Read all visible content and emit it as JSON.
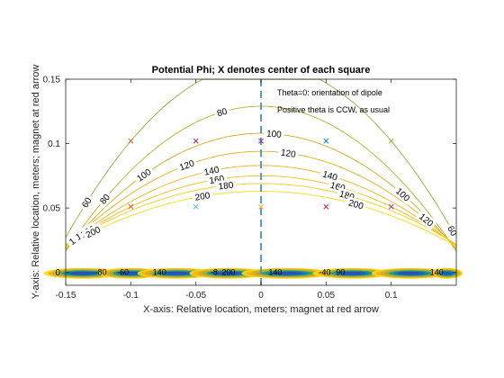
{
  "chart_data": {
    "type": "contour",
    "title": "Potential Phi;  X denotes center of each square",
    "xlabel": "X-axis: Relative location, meters;  magnet at red arrow",
    "ylabel": "Y-axis: Relative location, meters;  magnet at red arrow",
    "xlim": [
      -0.15,
      0.15
    ],
    "ylim": [
      -0.01,
      0.15
    ],
    "xticks": [
      -0.15,
      -0.1,
      -0.05,
      0,
      0.05,
      0.1
    ],
    "xtick_labels": [
      "-0.15",
      "-0.1",
      "-0.05",
      "0",
      "0.05",
      "0.1"
    ],
    "yticks": [
      0,
      0.05,
      0.1,
      0.15
    ],
    "ytick_labels": [
      "0",
      "0.05",
      "0.1",
      "0.15"
    ],
    "grid": false,
    "annotations": [
      "Theta=0: orientation of dipole",
      "Positive theta is CCW, as usual"
    ],
    "contour_levels": [
      {
        "level": 60,
        "color": "#8fb041",
        "y0": 0.162,
        "k": 6.0,
        "labels": [
          {
            "text": "60",
            "x": -0.134
          },
          {
            "text": "60",
            "x": 0.147
          }
        ]
      },
      {
        "level": 80,
        "color": "#b9b12a",
        "y0": 0.129,
        "k": 5.0,
        "labels": [
          {
            "text": "80",
            "x": -0.12
          },
          {
            "text": "80",
            "x": -0.03
          }
        ]
      },
      {
        "level": 100,
        "color": "#d4a922",
        "y0": 0.108,
        "k": 4.0,
        "labels": [
          {
            "text": "100",
            "x": -0.09
          },
          {
            "text": "100",
            "x": 0.01
          },
          {
            "text": "100",
            "x": 0.109
          }
        ]
      },
      {
        "level": 120,
        "color": "#e6ae1f",
        "y0": 0.094,
        "k": 3.3,
        "labels": [
          {
            "text": "120",
            "x": -0.057
          },
          {
            "text": "120",
            "x": 0.021
          },
          {
            "text": "120",
            "x": 0.127
          }
        ]
      },
      {
        "level": 140,
        "color": "#f0b41c",
        "y0": 0.083,
        "k": 2.8,
        "labels": [
          {
            "text": "140",
            "x": -0.142
          },
          {
            "text": "140",
            "x": -0.038
          },
          {
            "text": "140",
            "x": 0.053
          }
        ]
      },
      {
        "level": 160,
        "color": "#f6be1a",
        "y0": 0.075,
        "k": 2.4,
        "labels": [
          {
            "text": "160",
            "x": -0.137
          },
          {
            "text": "160",
            "x": -0.034
          },
          {
            "text": "160",
            "x": 0.059
          }
        ]
      },
      {
        "level": 180,
        "color": "#facd16",
        "y0": 0.069,
        "k": 2.1,
        "labels": [
          {
            "text": "180",
            "x": -0.133
          },
          {
            "text": "180",
            "x": -0.027
          },
          {
            "text": "180",
            "x": 0.066
          }
        ]
      },
      {
        "level": 200,
        "color": "#fadc14",
        "y0": 0.063,
        "k": 1.9,
        "labels": [
          {
            "text": "200",
            "x": -0.129
          },
          {
            "text": "200",
            "x": -0.045
          },
          {
            "text": "200",
            "x": 0.073
          }
        ]
      }
    ],
    "markers": [
      {
        "x": -0.1,
        "y": 0.102,
        "color": "#d95319"
      },
      {
        "x": -0.05,
        "y": 0.102,
        "color": "#a2142f"
      },
      {
        "x": 0,
        "y": 0.102,
        "color": "#7e2f8e"
      },
      {
        "x": 0.05,
        "y": 0.102,
        "color": "#0072bd"
      },
      {
        "x": 0.1,
        "y": 0.102,
        "color": "#77ac30"
      },
      {
        "x": -0.1,
        "y": 0.051,
        "color": "#d95319"
      },
      {
        "x": -0.05,
        "y": 0.051,
        "color": "#4dbeee"
      },
      {
        "x": 0,
        "y": 0.051,
        "color": "#edb120"
      },
      {
        "x": 0.05,
        "y": 0.051,
        "color": "#a2142f"
      },
      {
        "x": 0.1,
        "y": 0.051,
        "color": "#7e2f8e"
      }
    ],
    "dashed_line": {
      "x": 0,
      "color": "#4a90b8"
    },
    "bottom_band": {
      "y": 0,
      "labels": [
        {
          "text": "-80",
          "x": -0.123
        },
        {
          "text": "-60",
          "x": -0.106
        },
        {
          "text": "140",
          "x": -0.078
        },
        {
          "text": "-8",
          "x": -0.036
        },
        {
          "text": "200",
          "x": -0.025
        },
        {
          "text": "140",
          "x": 0.011
        },
        {
          "text": "90",
          "x": 0.061
        },
        {
          "text": "-40",
          "x": 0.049
        },
        {
          "text": "140",
          "x": 0.135
        }
      ]
    }
  }
}
